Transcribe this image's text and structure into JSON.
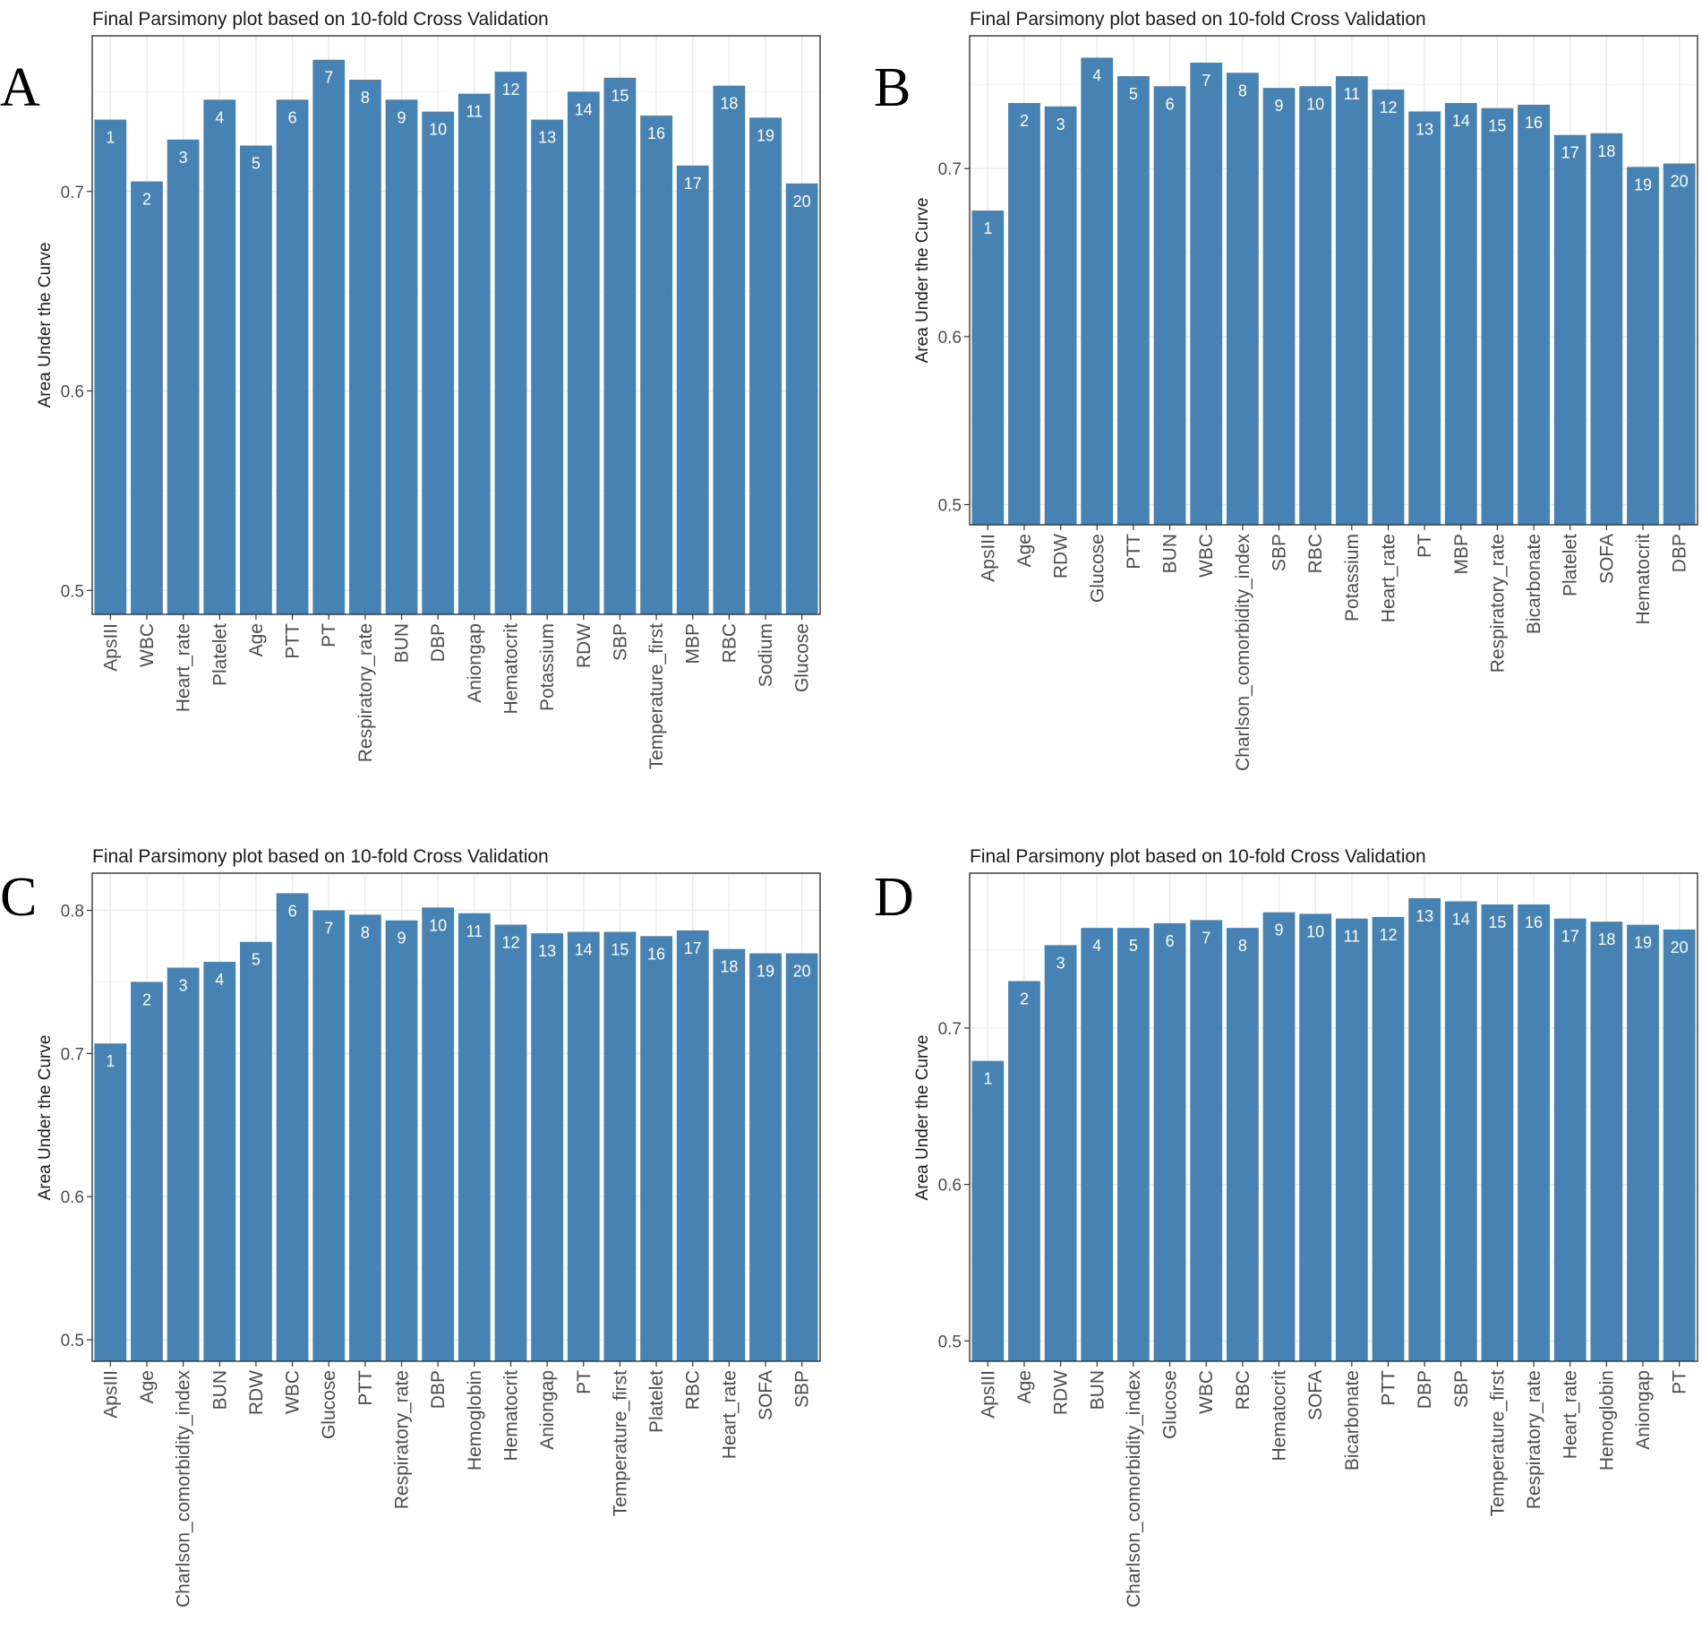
{
  "figure": {
    "panels": [
      "A",
      "B",
      "C",
      "D"
    ]
  },
  "chart_data": [
    {
      "panel": "A",
      "type": "bar",
      "title": "Final Parsimony plot based on 10-fold Cross Validation",
      "xlabel": "",
      "ylabel": "Area Under the Curve",
      "ylim": [
        0.488,
        0.778
      ],
      "yticks": [
        0.5,
        0.6,
        0.7
      ],
      "bar_color": "#4682B4",
      "grid": true,
      "categories": [
        "ApsIII",
        "WBC",
        "Heart_rate",
        "Platelet",
        "Age",
        "PTT",
        "PT",
        "Respiratory_rate",
        "BUN",
        "DBP",
        "Aniongap",
        "Hematocrit",
        "Potassium",
        "RDW",
        "SBP",
        "Temperature_first",
        "MBP",
        "RBC",
        "Sodium",
        "Glucose"
      ],
      "values": [
        0.736,
        0.705,
        0.726,
        0.746,
        0.723,
        0.746,
        0.766,
        0.756,
        0.746,
        0.74,
        0.749,
        0.76,
        0.736,
        0.75,
        0.757,
        0.738,
        0.713,
        0.753,
        0.737,
        0.704
      ],
      "labels": [
        "1",
        "2",
        "3",
        "4",
        "5",
        "6",
        "7",
        "8",
        "9",
        "10",
        "11",
        "12",
        "13",
        "14",
        "15",
        "16",
        "17",
        "18",
        "19",
        "20"
      ]
    },
    {
      "panel": "B",
      "type": "bar",
      "title": "Final Parsimony plot based on 10-fold Cross Validation",
      "xlabel": "",
      "ylabel": "Area Under the Curve",
      "ylim": [
        0.488,
        0.779
      ],
      "yticks": [
        0.5,
        0.6,
        0.7
      ],
      "bar_color": "#4682B4",
      "grid": true,
      "categories": [
        "ApsIII",
        "Age",
        "RDW",
        "Glucose",
        "PTT",
        "BUN",
        "WBC",
        "Charlson_comorbidity_index",
        "SBP",
        "RBC",
        "Potassium",
        "Heart_rate",
        "PT",
        "MBP",
        "Respiratory_rate",
        "Bicarbonate",
        "Platelet",
        "SOFA",
        "Hematocrit",
        "DBP"
      ],
      "values": [
        0.675,
        0.739,
        0.737,
        0.766,
        0.755,
        0.749,
        0.763,
        0.757,
        0.748,
        0.749,
        0.755,
        0.747,
        0.734,
        0.739,
        0.736,
        0.738,
        0.72,
        0.721,
        0.701,
        0.703
      ],
      "labels": [
        "1",
        "2",
        "3",
        "4",
        "5",
        "6",
        "7",
        "8",
        "9",
        "10",
        "11",
        "12",
        "13",
        "14",
        "15",
        "16",
        "17",
        "18",
        "19",
        "20"
      ]
    },
    {
      "panel": "C",
      "type": "bar",
      "title": "Final Parsimony plot based on 10-fold Cross Validation",
      "xlabel": "",
      "ylabel": "Area Under the Curve",
      "ylim": [
        0.485,
        0.826
      ],
      "yticks": [
        0.5,
        0.6,
        0.7,
        0.8
      ],
      "bar_color": "#4682B4",
      "grid": true,
      "categories": [
        "ApsIII",
        "Age",
        "Charlson_comorbidity_index",
        "BUN",
        "RDW",
        "WBC",
        "Glucose",
        "PTT",
        "Respiratory_rate",
        "DBP",
        "Hemoglobin",
        "Hematocrit",
        "Aniongap",
        "PT",
        "Temperature_first",
        "Platelet",
        "RBC",
        "Heart_rate",
        "SOFA",
        "SBP"
      ],
      "values": [
        0.707,
        0.75,
        0.76,
        0.764,
        0.778,
        0.812,
        0.8,
        0.797,
        0.793,
        0.802,
        0.798,
        0.79,
        0.784,
        0.785,
        0.785,
        0.782,
        0.786,
        0.773,
        0.77,
        0.77
      ],
      "labels": [
        "1",
        "2",
        "3",
        "4",
        "5",
        "6",
        "7",
        "8",
        "9",
        "10",
        "11",
        "12",
        "13",
        "14",
        "15",
        "16",
        "17",
        "18",
        "19",
        "20"
      ]
    },
    {
      "panel": "D",
      "type": "bar",
      "title": "Final Parsimony plot based on 10-fold Cross Validation",
      "xlabel": "",
      "ylabel": "Area Under the Curve",
      "ylim": [
        0.487,
        0.799
      ],
      "yticks": [
        0.5,
        0.6,
        0.7
      ],
      "bar_color": "#4682B4",
      "grid": true,
      "categories": [
        "ApsIII",
        "Age",
        "RDW",
        "BUN",
        "Charlson_comorbidity_index",
        "Glucose",
        "WBC",
        "RBC",
        "Hematocrit",
        "SOFA",
        "Bicarbonate",
        "PTT",
        "DBP",
        "SBP",
        "Temperature_first",
        "Respiratory_rate",
        "Heart_rate",
        "Hemoglobin",
        "Aniongap",
        "PT"
      ],
      "values": [
        0.679,
        0.73,
        0.753,
        0.764,
        0.764,
        0.767,
        0.769,
        0.764,
        0.774,
        0.773,
        0.77,
        0.771,
        0.783,
        0.781,
        0.779,
        0.779,
        0.77,
        0.768,
        0.766,
        0.763
      ],
      "labels": [
        "1",
        "2",
        "3",
        "4",
        "5",
        "6",
        "7",
        "8",
        "9",
        "10",
        "11",
        "12",
        "13",
        "14",
        "15",
        "16",
        "17",
        "18",
        "19",
        "20"
      ]
    }
  ]
}
